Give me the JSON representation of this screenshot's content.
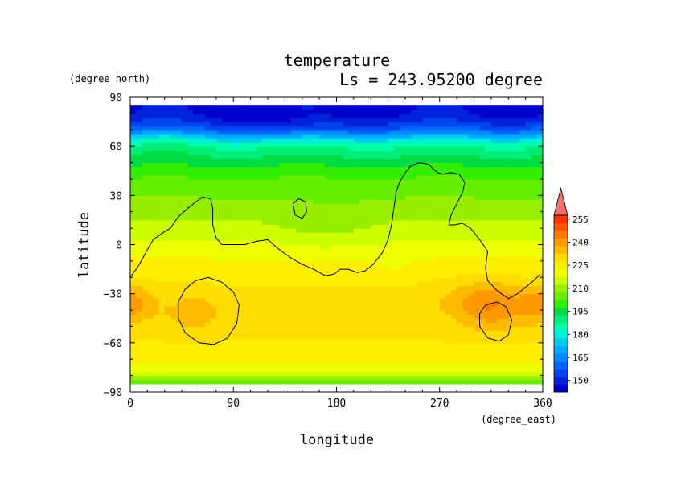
{
  "chart_data": {
    "type": "heatmap",
    "title": "temperature",
    "subtitle": "Ls = 243.95200 degree",
    "xlabel": "longitude",
    "ylabel": "latitude",
    "x_units": "(degree_east)",
    "y_units": "(degree_north)",
    "xlim": [
      0,
      360
    ],
    "ylim": [
      -90,
      90
    ],
    "x_ticks": [
      0,
      90,
      180,
      270,
      360
    ],
    "y_ticks": [
      90,
      60,
      30,
      0,
      -30,
      -60,
      -90
    ],
    "x_tick_labels": [
      "0",
      "90",
      "180",
      "270",
      "360"
    ],
    "y_tick_labels": [
      "90",
      "60",
      "30",
      "0",
      "−30",
      "−60",
      "−90"
    ],
    "data_lat_range": [
      -85,
      85
    ],
    "colorbar": {
      "levels": [
        142.5,
        147.5,
        152.5,
        157.5,
        162.5,
        167.5,
        172.5,
        177.5,
        182.5,
        187.5,
        192.5,
        197.5,
        202.5,
        207.5,
        212.5,
        217.5,
        222.5,
        227.5,
        232.5,
        237.5,
        242.5,
        247.5,
        252.5,
        257.5
      ],
      "colors": [
        "#0000cc",
        "#0022dd",
        "#0044ee",
        "#0066ff",
        "#0088ff",
        "#00aaff",
        "#00ccee",
        "#00eedd",
        "#00ffaa",
        "#00ee77",
        "#00dd44",
        "#33ee00",
        "#66ee00",
        "#99ee00",
        "#ccff00",
        "#eeff00",
        "#ffee00",
        "#ffdd00",
        "#ffbb00",
        "#ff9900",
        "#ff7700",
        "#ff5500",
        "#ff3300",
        "#ff1100"
      ],
      "over_color": "#f07070",
      "tick_values": [
        150,
        165,
        180,
        195,
        210,
        225,
        240,
        255
      ],
      "tick_labels": [
        "150",
        "165",
        "180",
        "195",
        "210",
        "225",
        "240",
        "255"
      ]
    },
    "latitude_profile": {
      "lat": [
        -85,
        -80,
        -75,
        -70,
        -65,
        -60,
        -50,
        -40,
        -30,
        -20,
        -10,
        0,
        10,
        20,
        30,
        40,
        50,
        55,
        60,
        65,
        70,
        75,
        80,
        85
      ],
      "temp": [
        200,
        212,
        220,
        224,
        226,
        227,
        229,
        230,
        229,
        226,
        223,
        219,
        214,
        211,
        207,
        203,
        196,
        192,
        187,
        176,
        160,
        152,
        147,
        146
      ]
    },
    "anomalies": [
      {
        "lon": 0,
        "lat": -35,
        "lon_width": 20,
        "lat_width": 12,
        "amplitude": 10
      },
      {
        "lon": 55,
        "lat": -42,
        "lon_width": 22,
        "lat_width": 12,
        "amplitude": 6
      },
      {
        "lon": 315,
        "lat": -38,
        "lon_width": 28,
        "lat_width": 14,
        "amplitude": 10
      },
      {
        "lon": 300,
        "lat": -32,
        "lon_width": 40,
        "lat_width": 14,
        "amplitude": 4
      },
      {
        "lon": 170,
        "lat": 10,
        "lon_width": 40,
        "lat_width": 18,
        "amplitude": -3
      },
      {
        "lon": 230,
        "lat": -10,
        "lon_width": 20,
        "lat_width": 10,
        "amplitude": -2
      },
      {
        "lon": 130,
        "lat": 75,
        "lon_width": 40,
        "lat_width": 8,
        "amplitude": -6
      },
      {
        "lon": 30,
        "lat": 65,
        "lon_width": 30,
        "lat_width": 8,
        "amplitude": 4
      }
    ],
    "contours": [
      {
        "name": "topography-dichotomy",
        "closed": false,
        "points": [
          [
            0,
            -20
          ],
          [
            8,
            -12
          ],
          [
            15,
            -3
          ],
          [
            20,
            3
          ],
          [
            28,
            7
          ],
          [
            35,
            10
          ],
          [
            42,
            17
          ],
          [
            50,
            22
          ],
          [
            57,
            26
          ],
          [
            63,
            29
          ],
          [
            70,
            28
          ],
          [
            72,
            22
          ],
          [
            72,
            12
          ],
          [
            75,
            4
          ],
          [
            80,
            0
          ],
          [
            90,
            0
          ],
          [
            100,
            0
          ],
          [
            110,
            2
          ],
          [
            120,
            3
          ],
          [
            125,
            0
          ],
          [
            130,
            -3
          ],
          [
            140,
            -8
          ],
          [
            150,
            -12
          ],
          [
            160,
            -15
          ],
          [
            170,
            -19
          ],
          [
            178,
            -18
          ],
          [
            183,
            -15
          ],
          [
            190,
            -15
          ],
          [
            198,
            -17
          ],
          [
            205,
            -16
          ],
          [
            212,
            -12
          ],
          [
            220,
            -5
          ],
          [
            225,
            3
          ],
          [
            228,
            12
          ],
          [
            230,
            22
          ],
          [
            232,
            32
          ],
          [
            235,
            38
          ],
          [
            240,
            44
          ],
          [
            245,
            48
          ],
          [
            252,
            50
          ],
          [
            260,
            49
          ],
          [
            268,
            44
          ],
          [
            273,
            43
          ],
          [
            280,
            44
          ],
          [
            287,
            43
          ],
          [
            292,
            38
          ],
          [
            290,
            32
          ],
          [
            285,
            25
          ],
          [
            280,
            18
          ],
          [
            278,
            12
          ],
          [
            283,
            12
          ],
          [
            290,
            13
          ],
          [
            297,
            10
          ],
          [
            305,
            3
          ],
          [
            312,
            -4
          ],
          [
            310,
            -14
          ],
          [
            312,
            -22
          ],
          [
            320,
            -28
          ],
          [
            330,
            -33
          ],
          [
            338,
            -30
          ],
          [
            345,
            -26
          ],
          [
            352,
            -22
          ],
          [
            358,
            -18
          ]
        ]
      },
      {
        "name": "hellas-basin",
        "closed": true,
        "points": [
          [
            42,
            -35
          ],
          [
            48,
            -27
          ],
          [
            57,
            -22
          ],
          [
            68,
            -20
          ],
          [
            80,
            -23
          ],
          [
            90,
            -29
          ],
          [
            95,
            -37
          ],
          [
            93,
            -48
          ],
          [
            85,
            -57
          ],
          [
            73,
            -61
          ],
          [
            60,
            -60
          ],
          [
            48,
            -54
          ],
          [
            42,
            -45
          ]
        ]
      },
      {
        "name": "argyre-basin",
        "closed": true,
        "points": [
          [
            305,
            -42
          ],
          [
            310,
            -37
          ],
          [
            320,
            -35
          ],
          [
            328,
            -38
          ],
          [
            333,
            -46
          ],
          [
            330,
            -55
          ],
          [
            322,
            -59
          ],
          [
            312,
            -57
          ],
          [
            305,
            -50
          ]
        ]
      },
      {
        "name": "elysium-rise",
        "closed": true,
        "points": [
          [
            142,
            25
          ],
          [
            147,
            28
          ],
          [
            153,
            26
          ],
          [
            154,
            20
          ],
          [
            150,
            16
          ],
          [
            144,
            18
          ]
        ]
      }
    ]
  }
}
